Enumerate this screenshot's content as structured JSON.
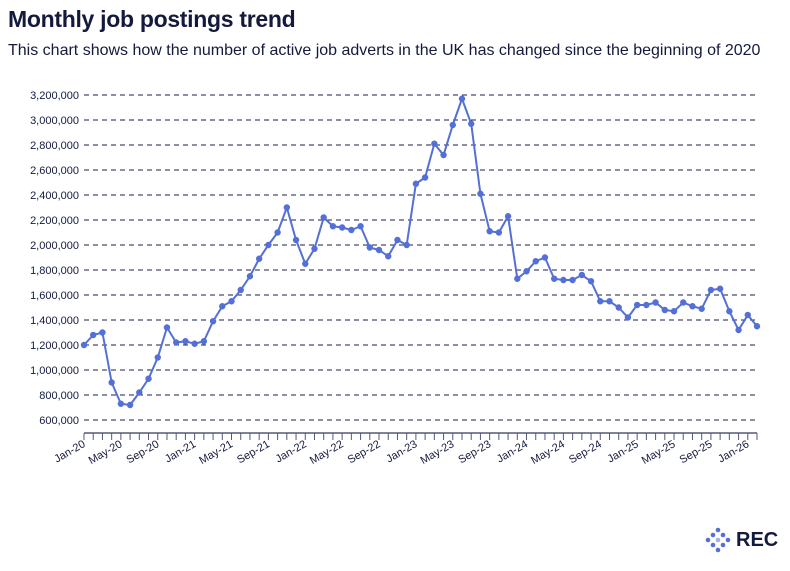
{
  "title": "Monthly job postings trend",
  "subtitle": "This chart shows how the number of active job adverts in the UK has changed since the beginning of 2020",
  "logo": "REC",
  "colors": {
    "line": "#5470d6",
    "grid": "#1b1f45",
    "text": "#141a3c"
  },
  "chart_data": {
    "type": "line",
    "title": "Monthly job postings trend",
    "xlabel": "",
    "ylabel": "",
    "ylim": [
      600000,
      3200000
    ],
    "yticks": [
      "600,000",
      "800,000",
      "1,000,000",
      "1,200,000",
      "1,400,000",
      "1,600,000",
      "1,800,000",
      "2,000,000",
      "2,200,000",
      "2,400,000",
      "2,600,000",
      "2,800,000",
      "3,000,000",
      "3,200,000"
    ],
    "xtick_labels": [
      "Jan-20",
      "May-20",
      "Sep-20",
      "Jan-21",
      "May-21",
      "Sep-21",
      "Jan-22",
      "May-22",
      "Sep-22",
      "Jan-23",
      "May-23",
      "Sep-23",
      "Jan-24",
      "May-24",
      "Sep-24",
      "Jan-25",
      "May-25",
      "Sep-25",
      "Jan-26"
    ],
    "grid": true,
    "x": [
      "Jan-20",
      "Feb-20",
      "Mar-20",
      "Apr-20",
      "May-20",
      "Jun-20",
      "Jul-20",
      "Aug-20",
      "Sep-20",
      "Oct-20",
      "Nov-20",
      "Dec-20",
      "Jan-21",
      "Feb-21",
      "Mar-21",
      "Apr-21",
      "May-21",
      "Jun-21",
      "Jul-21",
      "Aug-21",
      "Sep-21",
      "Oct-21",
      "Nov-21",
      "Dec-21",
      "Jan-22",
      "Feb-22",
      "Mar-22",
      "Apr-22",
      "May-22",
      "Jun-22",
      "Jul-22",
      "Aug-22",
      "Sep-22",
      "Oct-22",
      "Nov-22",
      "Dec-22",
      "Jan-23",
      "Feb-23",
      "Mar-23",
      "Apr-23",
      "May-23",
      "Jun-23",
      "Jul-23",
      "Aug-23",
      "Sep-23",
      "Oct-23",
      "Nov-23",
      "Dec-23",
      "Jan-24",
      "Feb-24",
      "Mar-24",
      "Apr-24",
      "May-24",
      "Jun-24",
      "Jul-24",
      "Aug-24",
      "Sep-24",
      "Oct-24",
      "Nov-24",
      "Dec-24",
      "Jan-25",
      "Feb-25",
      "Mar-25",
      "Apr-25",
      "May-25",
      "Jun-25",
      "Jul-25",
      "Aug-25",
      "Sep-25",
      "Oct-25",
      "Nov-25",
      "Dec-25",
      "Jan-26",
      "Feb-26"
    ],
    "series": [
      {
        "values": [
          1200000,
          1280000,
          1300000,
          900000,
          730000,
          720000,
          820000,
          930000,
          1100000,
          1340000,
          1220000,
          1230000,
          1210000,
          1230000,
          1390000,
          1510000,
          1550000,
          1640000,
          1750000,
          1890000,
          2000000,
          2100000,
          2300000,
          2040000,
          1850000,
          1970000,
          2220000,
          2150000,
          2140000,
          2120000,
          2150000,
          1980000,
          1960000,
          1910000,
          2040000,
          2000000,
          2490000,
          2540000,
          2810000,
          2720000,
          2960000,
          3170000,
          2970000,
          2410000,
          2110000,
          2100000,
          2230000,
          1730000,
          1790000,
          1870000,
          1900000,
          1730000,
          1720000,
          1720000,
          1760000,
          1710000,
          1550000,
          1550000,
          1500000,
          1420000,
          1520000,
          1520000,
          1540000,
          1480000,
          1470000,
          1540000,
          1510000,
          1490000,
          1640000,
          1650000,
          1470000,
          1320000,
          1440000,
          1350000
        ]
      }
    ]
  }
}
